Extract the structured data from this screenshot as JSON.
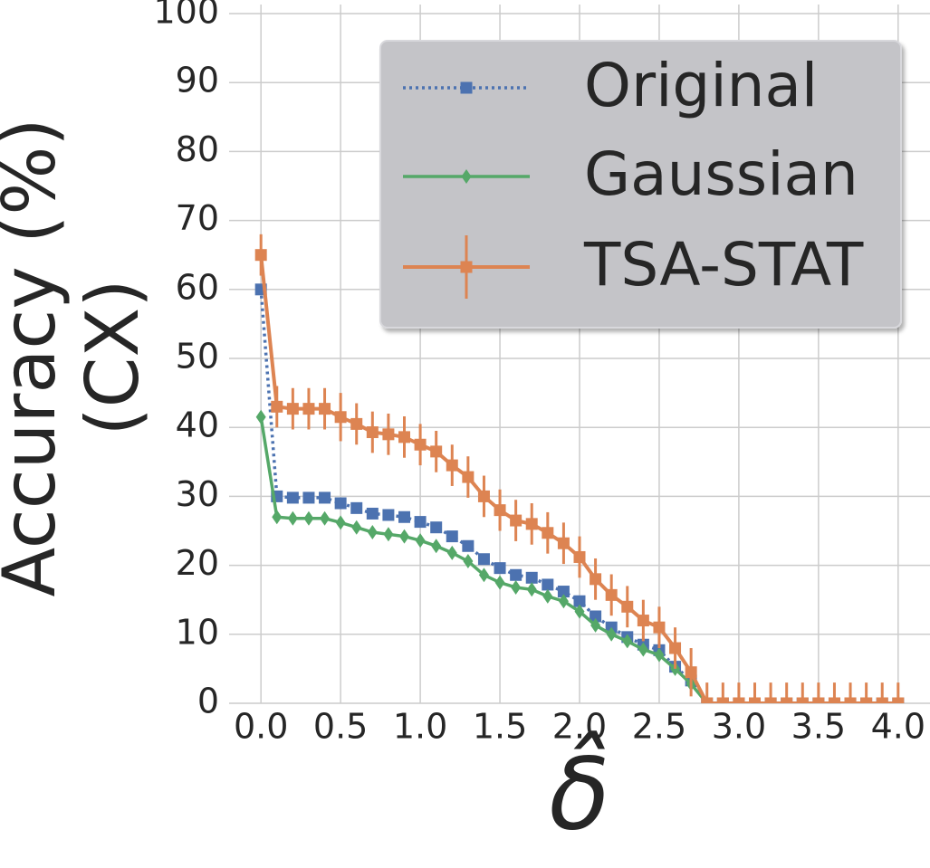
{
  "chart_data": {
    "type": "line",
    "x_label": "δ̂",
    "y_label": [
      "Accuracy (%)",
      "(CX)"
    ],
    "x": [
      0,
      0.1,
      0.2,
      0.3,
      0.4,
      0.5,
      0.6,
      0.7,
      0.8,
      0.9,
      1.0,
      1.1,
      1.2,
      1.3,
      1.4,
      1.5,
      1.6,
      1.7,
      1.8,
      1.9,
      2.0,
      2.1,
      2.2,
      2.3,
      2.4,
      2.5,
      2.6,
      2.7,
      2.8,
      2.9,
      3.0,
      3.1,
      3.2,
      3.3,
      3.4,
      3.5,
      3.6,
      3.7,
      3.8,
      3.9,
      4.0
    ],
    "series": [
      {
        "name": "Original",
        "color": "#4c72b0",
        "line_style": "dotted",
        "marker": "square",
        "values": [
          60,
          30,
          29.8,
          29.8,
          29.8,
          29,
          28.3,
          27.5,
          27.3,
          27,
          26.3,
          25.5,
          24.2,
          22.8,
          20.9,
          19.6,
          18.6,
          18.2,
          17.2,
          16.2,
          14.8,
          12.6,
          11,
          9.6,
          8.5,
          7.7,
          5.3,
          3.3,
          0,
          0,
          0,
          0,
          0,
          0,
          0,
          0,
          0,
          0,
          0,
          0,
          0
        ]
      },
      {
        "name": "Gaussian",
        "color": "#55a868",
        "line_style": "solid",
        "marker": "diamond",
        "values": [
          41.5,
          27,
          26.8,
          26.8,
          26.8,
          26.2,
          25.5,
          24.8,
          24.5,
          24.2,
          23.6,
          22.8,
          21.8,
          20.6,
          18.6,
          17.5,
          16.8,
          16.5,
          15.5,
          14.8,
          13.3,
          11.3,
          10,
          9,
          7.8,
          7,
          5,
          2.8,
          0,
          0,
          0,
          0,
          0,
          0,
          0,
          0,
          0,
          0,
          0,
          0,
          0
        ]
      },
      {
        "name": "TSA-STAT",
        "color": "#dd8452",
        "line_style": "solid",
        "marker": "square",
        "values": [
          65,
          43,
          42.7,
          42.7,
          42.7,
          41.5,
          40.5,
          39.3,
          39,
          38.6,
          37.5,
          36.5,
          34.5,
          32.8,
          30,
          28,
          26.5,
          26,
          24.7,
          23.2,
          21.2,
          18,
          15.7,
          14,
          12,
          11,
          8,
          4.5,
          0,
          0,
          0,
          0,
          0,
          0,
          0,
          0,
          0,
          0,
          0,
          0,
          0
        ],
        "errors": [
          3,
          3,
          3,
          3,
          3,
          3.5,
          3,
          3,
          3,
          3,
          3,
          3,
          3,
          3,
          3,
          3,
          3,
          3,
          3,
          3,
          3,
          3,
          3,
          3,
          3,
          3,
          3,
          3.5,
          3,
          3,
          3,
          3,
          3,
          3,
          3,
          3,
          3,
          3,
          3,
          3,
          3
        ]
      }
    ],
    "xlim": [
      -0.2,
      4.2
    ],
    "ylim": [
      0,
      100
    ],
    "xticks": [
      {
        "value": 0,
        "label": "0.0"
      },
      0.5,
      {
        "value": 1,
        "label": "1.0"
      },
      1.5,
      {
        "value": 2,
        "label": "2.0"
      },
      2.5,
      {
        "value": 3,
        "label": "3.0"
      },
      3.5,
      {
        "value": 4,
        "label": "4.0"
      }
    ],
    "yticks": [
      0,
      10,
      20,
      30,
      40,
      50,
      60,
      70,
      80,
      90,
      100
    ],
    "grid": true,
    "legend": "upper right"
  }
}
